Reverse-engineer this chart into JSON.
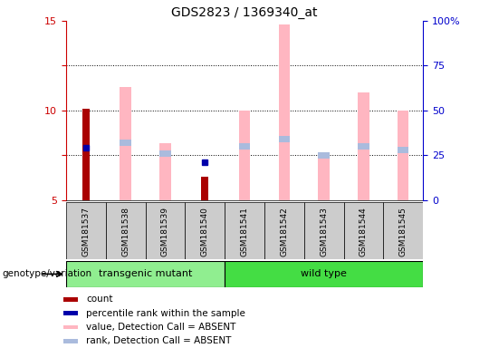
{
  "title": "GDS2823 / 1369340_at",
  "samples": [
    "GSM181537",
    "GSM181538",
    "GSM181539",
    "GSM181540",
    "GSM181541",
    "GSM181542",
    "GSM181543",
    "GSM181544",
    "GSM181545"
  ],
  "group_boxes": [
    {
      "label": "transgenic mutant",
      "start": 0,
      "end": 4,
      "color": "#90EE90"
    },
    {
      "label": "wild type",
      "start": 4,
      "end": 9,
      "color": "#44DD44"
    }
  ],
  "ylim_left": [
    5,
    15
  ],
  "ylim_right": [
    0,
    100
  ],
  "yticks_left": [
    5,
    7.5,
    10,
    12.5,
    15
  ],
  "ytick_labels_left": [
    "5",
    "",
    "10",
    "",
    "15"
  ],
  "yticks_right": [
    0,
    25,
    50,
    75,
    100
  ],
  "ytick_labels_right": [
    "0",
    "25",
    "50",
    "75",
    "100%"
  ],
  "count_values": [
    10.1,
    null,
    null,
    6.3,
    null,
    null,
    null,
    null,
    null
  ],
  "percentile_rank": [
    7.9,
    null,
    null,
    7.1,
    null,
    null,
    null,
    null,
    null
  ],
  "value_absent_top": [
    null,
    11.3,
    8.2,
    null,
    10.0,
    14.8,
    7.5,
    11.0,
    10.0
  ],
  "rank_absent_level": [
    null,
    8.2,
    7.6,
    null,
    8.0,
    8.4,
    7.5,
    8.0,
    7.8
  ],
  "color_count": "#AA0000",
  "color_percentile": "#0000AA",
  "color_value_absent": "#FFB6C1",
  "color_rank_absent": "#AABBDD",
  "legend_items": [
    {
      "color": "#AA0000",
      "label": "count"
    },
    {
      "color": "#0000AA",
      "label": "percentile rank within the sample"
    },
    {
      "color": "#FFB6C1",
      "label": "value, Detection Call = ABSENT"
    },
    {
      "color": "#AABBDD",
      "label": "rank, Detection Call = ABSENT"
    }
  ],
  "bar_width": 0.28,
  "dotted_gridlines": [
    7.5,
    10.0,
    12.5
  ],
  "left_axis_color": "#CC0000",
  "right_axis_color": "#0000CC",
  "gray_col": "#CCCCCC",
  "genotype_label": "genotype/variation"
}
